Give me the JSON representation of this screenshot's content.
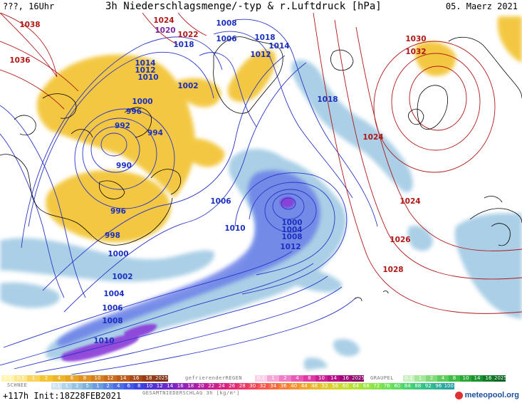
{
  "header": {
    "left_label": "???, 16Uhr",
    "title": "3h Niederschlagsmenge/-typ & r.Luftdruck [hPa]",
    "date": "05. Maerz 2021"
  },
  "pressure_labels": [
    {
      "text": "1038",
      "tone": "high"
    },
    {
      "text": "1036",
      "tone": "high"
    },
    {
      "text": "1024",
      "tone": "high"
    },
    {
      "text": "1020",
      "tone": "mid"
    },
    {
      "text": "1022",
      "tone": "high"
    },
    {
      "text": "1018",
      "tone": "low"
    },
    {
      "text": "1008",
      "tone": "low"
    },
    {
      "text": "1006",
      "tone": "low"
    },
    {
      "text": "1018",
      "tone": "low"
    },
    {
      "text": "1014",
      "tone": "low"
    },
    {
      "text": "1012",
      "tone": "low"
    },
    {
      "text": "1014",
      "tone": "low"
    },
    {
      "text": "1012",
      "tone": "low"
    },
    {
      "text": "1010",
      "tone": "low"
    },
    {
      "text": "1002",
      "tone": "low"
    },
    {
      "text": "1000",
      "tone": "low"
    },
    {
      "text": "996",
      "tone": "low"
    },
    {
      "text": "992",
      "tone": "low"
    },
    {
      "text": "994",
      "tone": "low"
    },
    {
      "text": "990",
      "tone": "low"
    },
    {
      "text": "996",
      "tone": "low"
    },
    {
      "text": "998",
      "tone": "low"
    },
    {
      "text": "1000",
      "tone": "low"
    },
    {
      "text": "1002",
      "tone": "low"
    },
    {
      "text": "1004",
      "tone": "low"
    },
    {
      "text": "1006",
      "tone": "low"
    },
    {
      "text": "1008",
      "tone": "low"
    },
    {
      "text": "1010",
      "tone": "low"
    },
    {
      "text": "1006",
      "tone": "low"
    },
    {
      "text": "1010",
      "tone": "low"
    },
    {
      "text": "1000",
      "tone": "low"
    },
    {
      "text": "1004",
      "tone": "low"
    },
    {
      "text": "1008",
      "tone": "low"
    },
    {
      "text": "1012",
      "tone": "low"
    },
    {
      "text": "1018",
      "tone": "low"
    },
    {
      "text": "1024",
      "tone": "high"
    },
    {
      "text": "1024",
      "tone": "high"
    },
    {
      "text": "1026",
      "tone": "high"
    },
    {
      "text": "1028",
      "tone": "high"
    },
    {
      "text": "1030",
      "tone": "high"
    },
    {
      "text": "1032",
      "tone": "high"
    }
  ],
  "colors": {
    "isobar_low": "#2a35c8",
    "isobar_high": "#b01818",
    "label_high": "#b01818",
    "label_mid": "#7a2aa0",
    "label_low": "#1c30c0",
    "snow": "#f2c22e",
    "rain_light": "#9cc7e2",
    "rain_mod": "#6a80e8",
    "rain_heavy": "#8a3ad8",
    "coast": "#000000"
  },
  "legend": {
    "snow": {
      "name": "SCHNEE",
      "values": [
        "0.1",
        "0.5",
        "1",
        "2",
        "4",
        "6",
        "8",
        "10",
        "12",
        "14",
        "16",
        "18",
        "2025+"
      ],
      "colors": [
        "#fff4b0",
        "#fde58a",
        "#f8d55a",
        "#f3c535",
        "#eeb52a",
        "#e8a425",
        "#df9222",
        "#d5801f",
        "#c96e1d",
        "#bb5c1b",
        "#a94b19",
        "#953c17",
        "#7e3014"
      ]
    },
    "freezing_rain": {
      "name": "gefrierenderREGEN",
      "values": [
        "0.1",
        "1",
        "2",
        "4",
        "8",
        "10",
        "14",
        "16",
        "2025+"
      ],
      "colors": [
        "#fbd0e8",
        "#f6a6d6",
        "#ef7ec6",
        "#e85ab6",
        "#dd3aa6",
        "#cc2096",
        "#b81088",
        "#a0087a",
        "#880066"
      ]
    },
    "graupel": {
      "name": "GRAUPEL",
      "values": [
        "0.1",
        "1",
        "2",
        "4",
        "8",
        "10",
        "14",
        "16",
        "2025+"
      ],
      "colors": [
        "#c8f0c0",
        "#a4e69a",
        "#80da78",
        "#5ccc5a",
        "#40bc44",
        "#2aa838",
        "#1a922e",
        "#107c26",
        "#08661e"
      ]
    },
    "total": {
      "name": "GESAMTNIEDERSCHLAG 3h [kg/m²]",
      "values": [
        "0.1",
        "1",
        "2",
        "5",
        "1",
        "2",
        "4",
        "6",
        "8",
        "10",
        "12",
        "14",
        "16",
        "18",
        "20",
        "22",
        "24",
        "26",
        "28",
        "30",
        "32",
        "34",
        "36",
        "40",
        "44",
        "48",
        "52",
        "56",
        "60",
        "64",
        "68",
        "72",
        "76",
        "80",
        "84",
        "88",
        "92",
        "96",
        "100"
      ],
      "colors": [
        "#cfe4f2",
        "#b2d4ea",
        "#96c4e2",
        "#7eb4dc",
        "#6a9ee0",
        "#5a86e4",
        "#4c6ee6",
        "#4258e6",
        "#3c44e0",
        "#4a36d8",
        "#5e2ed0",
        "#7428c8",
        "#8a24bc",
        "#a020b0",
        "#b41ea2",
        "#c61e94",
        "#d62086",
        "#e22878",
        "#ea366a",
        "#f0465c",
        "#f4584e",
        "#f66a42",
        "#f67e38",
        "#f49232",
        "#f0a62e",
        "#eab82c",
        "#e2c82c",
        "#d6d42e",
        "#c6dc32",
        "#b2e238",
        "#9ce440",
        "#86e44a",
        "#70e256",
        "#5adc62",
        "#48d470",
        "#3aca7e",
        "#30be8c",
        "#2ab098",
        "#28a2a2"
      ]
    }
  },
  "footer": {
    "init_label": "+117h  Init:18Z28FEB2021",
    "brand": "meteopool.org"
  }
}
